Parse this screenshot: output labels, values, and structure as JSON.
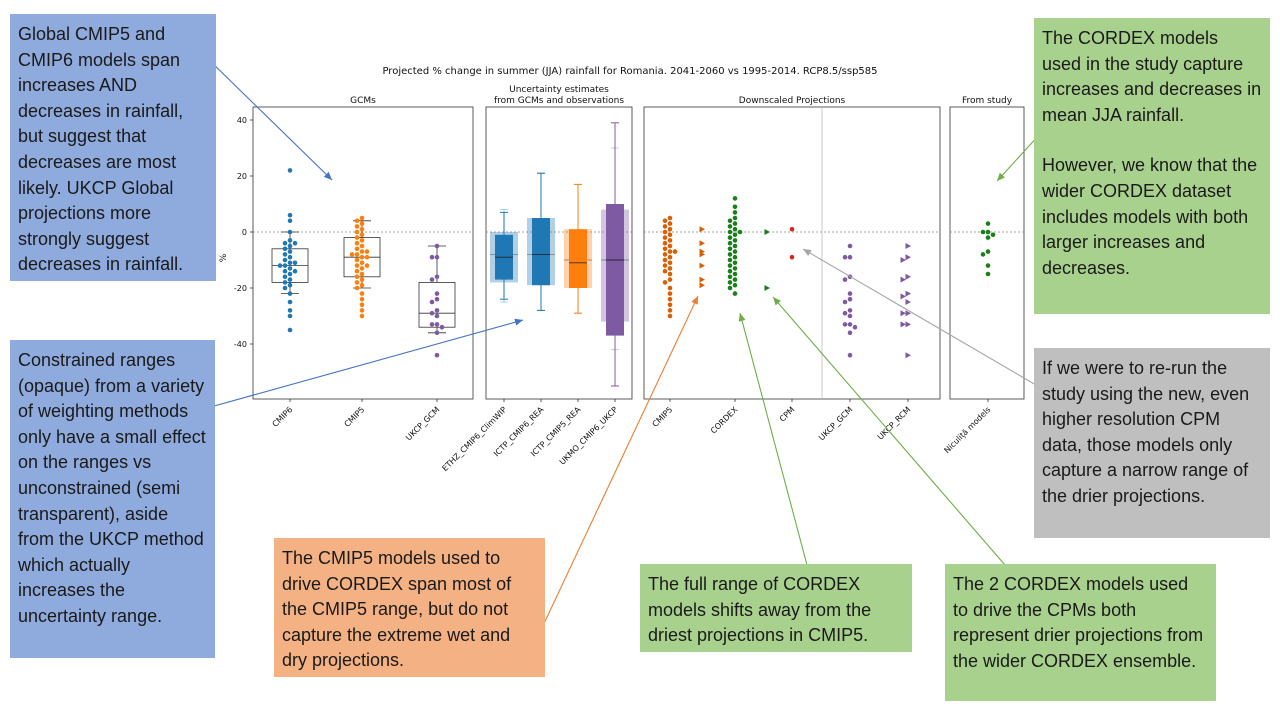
{
  "chart_data": {
    "type": "scatter",
    "title": "Projected % change in summer (JJA) rainfall for Romania. 2041-2060 vs 1995-2014. RCP8.5/ssp585",
    "ylabel": "%",
    "ylim": [
      -60,
      50
    ],
    "yticks": [
      40,
      20,
      0,
      -20,
      -40
    ],
    "reference_line_y": 0,
    "panels": [
      {
        "id": "gcms",
        "title": "GCMs",
        "groups": [
          {
            "label": "CMIP6",
            "color": "#1f77b4",
            "marker": "circle",
            "box": {
              "whislo": -22,
              "q1": -18,
              "med": -12,
              "q3": -6,
              "whishi": 0
            },
            "values": [
              22,
              6,
              4,
              0,
              -3,
              -4,
              -4,
              -5,
              -6,
              -7,
              -8,
              -9,
              -10,
              -11,
              -11,
              -12,
              -12,
              -13,
              -14,
              -14,
              -15,
              -16,
              -17,
              -18,
              -19,
              -20,
              -22,
              -25,
              -28,
              -30,
              -35
            ]
          },
          {
            "label": "CMIP5",
            "color": "#ff7f0e",
            "marker": "circle",
            "box": {
              "whislo": -20,
              "q1": -16,
              "med": -9,
              "q3": -2,
              "whishi": 4
            },
            "values": [
              5,
              4,
              3,
              2,
              1,
              0,
              -1,
              -2,
              -3,
              -4,
              -5,
              -6,
              -7,
              -7,
              -8,
              -8,
              -9,
              -9,
              -10,
              -11,
              -12,
              -12,
              -13,
              -14,
              -15,
              -16,
              -17,
              -18,
              -19,
              -20,
              -22,
              -24,
              -26,
              -28,
              -30
            ]
          },
          {
            "label": "UKCP_GCM",
            "color": "#7e5aa3",
            "marker": "circle",
            "box": {
              "whislo": -36,
              "q1": -34,
              "med": -29,
              "q3": -18,
              "whishi": -5
            },
            "values": [
              -5,
              -9,
              -9,
              -16,
              -17,
              -22,
              -24,
              -25,
              -28,
              -29,
              -30,
              -33,
              -33,
              -34,
              -36,
              -44
            ]
          }
        ]
      },
      {
        "id": "uncertainty",
        "title": "Uncertainty estimates\nfrom GCMs and observations",
        "groups": [
          {
            "label": "ETHZ_CMIP6_ClimWIP",
            "color": "#1f77b4",
            "unconstrained": {
              "whislo": -25,
              "q1": -18,
              "med": -8,
              "q3": 0,
              "whishi": 8
            },
            "constrained": {
              "whislo": -24,
              "q1": -17,
              "med": -9,
              "q3": -1,
              "whishi": 7
            }
          },
          {
            "label": "ICTP_CMIP6_REA",
            "color": "#1f77b4",
            "unconstrained": {
              "whislo": -28,
              "q1": -19,
              "med": -8,
              "q3": 5,
              "whishi": 21
            },
            "constrained": {
              "whislo": -28,
              "q1": -19,
              "med": -8,
              "q3": 5,
              "whishi": 21
            }
          },
          {
            "label": "ICTP_CMIP5_REA",
            "color": "#ff7f0e",
            "unconstrained": {
              "whislo": -29,
              "q1": -20,
              "med": -10,
              "q3": 1,
              "whishi": 17
            },
            "constrained": {
              "whislo": -29,
              "q1": -20,
              "med": -11,
              "q3": 1,
              "whishi": 17
            }
          },
          {
            "label": "UKMO_CMIP6_UKCP",
            "color": "#7e5aa3",
            "unconstrained": {
              "whislo": -42,
              "q1": -32,
              "med": -10,
              "q3": 8,
              "whishi": 30
            },
            "constrained": {
              "whislo": -55,
              "q1": -37,
              "med": -10,
              "q3": 10,
              "whishi": 39
            }
          }
        ]
      },
      {
        "id": "downscaled",
        "title": "Downscaled Projections",
        "groups": [
          {
            "label": "CMIP5",
            "color": "#d95f02",
            "marker": "circle",
            "values": [
              5,
              4,
              3,
              2,
              1,
              0,
              -1,
              -2,
              -3,
              -4,
              -5,
              -6,
              -7,
              -7,
              -8,
              -9,
              -10,
              -11,
              -12,
              -13,
              -14,
              -15,
              -17,
              -18,
              -20,
              -22,
              -24,
              -26,
              -28,
              -30
            ],
            "driving_values": [
              1,
              -4,
              -7,
              -8,
              -12,
              -17,
              -19
            ]
          },
          {
            "label": "CORDEX",
            "color": "#1a7f1a",
            "marker": "circle",
            "values": [
              12,
              9,
              7,
              5,
              4,
              3,
              2,
              1,
              0,
              0,
              -1,
              -2,
              -3,
              -4,
              -5,
              -6,
              -7,
              -8,
              -9,
              -10,
              -11,
              -12,
              -13,
              -14,
              -15,
              -16,
              -17,
              -18,
              -19,
              -20,
              -22
            ],
            "driving_values": [
              0,
              -20
            ]
          },
          {
            "label": "CPM",
            "color": "#d62728",
            "marker": "circle",
            "values": [
              1,
              -9
            ]
          },
          {
            "label": "UKCP_GCM",
            "color": "#7e5aa3",
            "marker": "circle",
            "values": [
              -5,
              -9,
              -9,
              -16,
              -17,
              -22,
              -24,
              -25,
              -28,
              -29,
              -30,
              -33,
              -33,
              -34,
              -36,
              -44
            ]
          },
          {
            "label": "UKCP_RCM",
            "color": "#7e5aa3",
            "marker": "triangle",
            "values": [
              -5,
              -9,
              -10,
              -16,
              -17,
              -22,
              -23,
              -25,
              -29,
              -29,
              -33,
              -33,
              -44
            ]
          }
        ]
      },
      {
        "id": "study",
        "title": "From study",
        "groups": [
          {
            "label": "Niculiță models",
            "color": "#1a7f1a",
            "marker": "circle",
            "values": [
              3,
              0,
              0,
              -1,
              -2,
              -7,
              -8,
              -12,
              -15
            ]
          }
        ]
      }
    ]
  },
  "annotations": {
    "gcm_spread": "Global CMIP5 and CMIP6  models span increases AND decreases in rainfall, but suggest that decreases are most likely. UKCP Global projections more strongly suggest decreases in rainfall.",
    "constrained_ranges": "Constrained ranges (opaque) from a variety of weighting methods only have a small effect on the ranges vs unconstrained (semi transparent), aside from the UKCP method which actually increases the uncertainty range.",
    "cmip5_driving": "The CMIP5 models used to drive CORDEX span most of the CMIP5 range, but do not capture the extreme wet and dry projections.",
    "cordex_range": "The full range of CORDEX models shifts away from the driest projections in CMIP5.",
    "cordex_driving_cpm": "The 2 CORDEX models used to drive the CPMs both represent drier projections from the wider CORDEX ensemble.",
    "study_models_1": "The CORDEX models used in the study capture increases and decreases in mean JJA rainfall.",
    "study_models_2": "However, we know that the wider CORDEX dataset includes models with both larger increases and decreases.",
    "cpm_rerun": "If we were to re-run the study using the new, even higher resolution CPM data, those models only capture a narrow range of the drier projections."
  }
}
